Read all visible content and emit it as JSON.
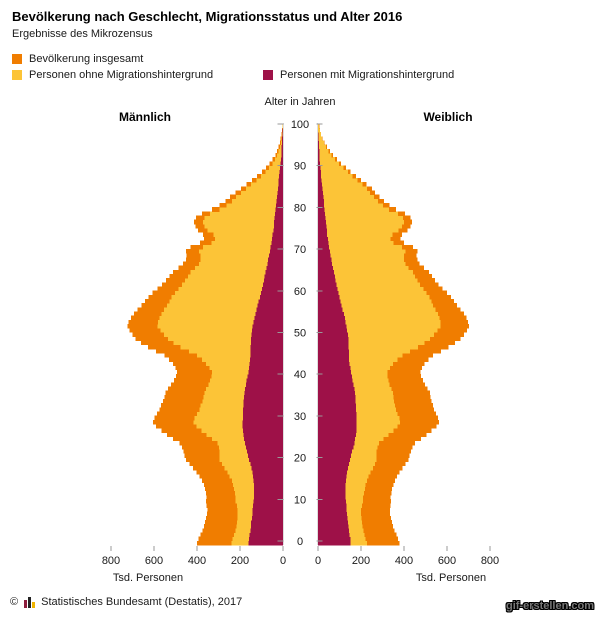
{
  "title": "Bevölkerung nach Geschlecht, Migrationsstatus und Alter 2016",
  "subtitle": "Ergebnisse des Mikrozensus",
  "colors": {
    "orange": "#F07D00",
    "yellow": "#FCC437",
    "bordeaux": "#9E1148",
    "tick": "#999999",
    "grid": "#dddddd",
    "axis_text": "#1a1a1a"
  },
  "legend": {
    "items": [
      {
        "label": "Bevölkerung insgesamt",
        "color": "#F07D00"
      },
      {
        "label": "Personen ohne Migrationshintergrund",
        "color": "#FCC437"
      },
      {
        "label": "Personen mit Migrationshintergrund",
        "color": "#9E1148"
      }
    ]
  },
  "pyramid": {
    "male_label": "Männlich",
    "female_label": "Weiblich",
    "center_axis_title": "Alter in Jahren",
    "age_ticks": [
      0,
      10,
      20,
      30,
      40,
      50,
      60,
      70,
      80,
      90,
      100
    ],
    "x_ticks": [
      0,
      200,
      400,
      600,
      800
    ],
    "x_axis_label": "Tsd. Personen"
  },
  "footer": {
    "copyright_symbol": "©",
    "source": "Statistisches Bundesamt (Destatis), 2017"
  },
  "watermark": "gif-erstellen.com",
  "chart_data": {
    "type": "bar",
    "variant": "population-pyramid",
    "title": "Bevölkerung nach Geschlecht, Migrationsstatus und Alter 2016",
    "age_axis": "Alter in Jahren, 0 bis 100, ein Balken je Altersjahr (index = Alter)",
    "unit": "Tsd. Personen",
    "xlim_each_side": [
      0,
      800
    ],
    "note": "Bevölkerung insgesamt (orange) = ohne + mit Migrationshintergrund",
    "series": [
      {
        "name": "männlich ohne Migrationshintergrund",
        "color": "#FCC437",
        "values": [
          240,
          234,
          228,
          222,
          217,
          214,
          212,
          211,
          211,
          215,
          220,
          220,
          224,
          228,
          232,
          238,
          248,
          259,
          271,
          284,
          295,
          296,
          296,
          298,
          305,
          331,
          356,
          380,
          402,
          416,
          411,
          399,
          389,
          383,
          375,
          370,
          366,
          357,
          347,
          339,
          333,
          331,
          342,
          357,
          377,
          400,
          438,
          477,
          510,
          536,
          553,
          570,
          583,
          581,
          575,
          566,
          553,
          540,
          529,
          518,
          503,
          486,
          469,
          455,
          443,
          431,
          409,
          391,
          383,
          383,
          391,
          373,
          332,
          317,
          324,
          351,
          365,
          373,
          365,
          339,
          295,
          263,
          238,
          218,
          196,
          172,
          148,
          124,
          102,
          82,
          66,
          50,
          38,
          28,
          20,
          14,
          10,
          7,
          5,
          3,
          2
        ]
      },
      {
        "name": "männlich mit Migrationshintergrund",
        "color": "#9E1148",
        "values": [
          160,
          158,
          155,
          152,
          150,
          148,
          145,
          143,
          141,
          140,
          138,
          136,
          135,
          135,
          136,
          138,
          140,
          143,
          147,
          152,
          157,
          162,
          167,
          172,
          177,
          181,
          184,
          186,
          188,
          188,
          187,
          186,
          185,
          184,
          183,
          182,
          180,
          177,
          173,
          169,
          165,
          161,
          158,
          155,
          153,
          152,
          152,
          151,
          150,
          149,
          147,
          144,
          141,
          137,
          133,
          128,
          123,
          118,
          113,
          108,
          103,
          98,
          93,
          89,
          85,
          81,
          77,
          73,
          69,
          65,
          61,
          57,
          54,
          51,
          48,
          45,
          43,
          41,
          39,
          37,
          35,
          33,
          30,
          28,
          26,
          24,
          22,
          20,
          18,
          16,
          14,
          12,
          10,
          8,
          7,
          6,
          5,
          4,
          3,
          2,
          1
        ]
      },
      {
        "name": "weiblich ohne Migrationshintergrund",
        "color": "#FCC437",
        "values": [
          228,
          222,
          217,
          212,
          207,
          204,
          202,
          201,
          201,
          205,
          210,
          210,
          214,
          218,
          222,
          227,
          236,
          245,
          255,
          264,
          271,
          272,
          273,
          276,
          283,
          305,
          328,
          350,
          370,
          382,
          379,
          370,
          363,
          358,
          353,
          350,
          348,
          341,
          333,
          327,
          323,
          323,
          334,
          349,
          369,
          392,
          428,
          465,
          496,
          521,
          539,
          556,
          569,
          569,
          565,
          558,
          547,
          536,
          527,
          518,
          505,
          490,
          474,
          462,
          452,
          442,
          422,
          406,
          400,
          400,
          407,
          390,
          351,
          338,
          347,
          375,
          391,
          401,
          395,
          371,
          331,
          303,
          279,
          261,
          241,
          229,
          207,
          183,
          161,
          139,
          119,
          98,
          80,
          63,
          49,
          37,
          27,
          19,
          13,
          9,
          5
        ]
      },
      {
        "name": "weiblich mit Migrationshintergrund",
        "color": "#9E1148",
        "values": [
          152,
          150,
          147,
          144,
          142,
          140,
          137,
          135,
          133,
          132,
          130,
          128,
          127,
          127,
          128,
          130,
          132,
          135,
          139,
          144,
          149,
          154,
          159,
          164,
          169,
          173,
          176,
          178,
          180,
          180,
          179,
          178,
          177,
          176,
          175,
          174,
          172,
          169,
          165,
          161,
          157,
          153,
          150,
          147,
          145,
          144,
          144,
          143,
          142,
          141,
          139,
          136,
          133,
          129,
          125,
          120,
          115,
          110,
          105,
          100,
          95,
          90,
          86,
          82,
          78,
          74,
          70,
          66,
          62,
          58,
          55,
          52,
          49,
          46,
          43,
          41,
          39,
          37,
          35,
          33,
          31,
          29,
          27,
          25,
          23,
          21,
          19,
          17,
          15,
          13,
          11,
          9,
          8,
          7,
          6,
          5,
          4,
          3,
          2,
          1,
          1
        ]
      }
    ]
  }
}
